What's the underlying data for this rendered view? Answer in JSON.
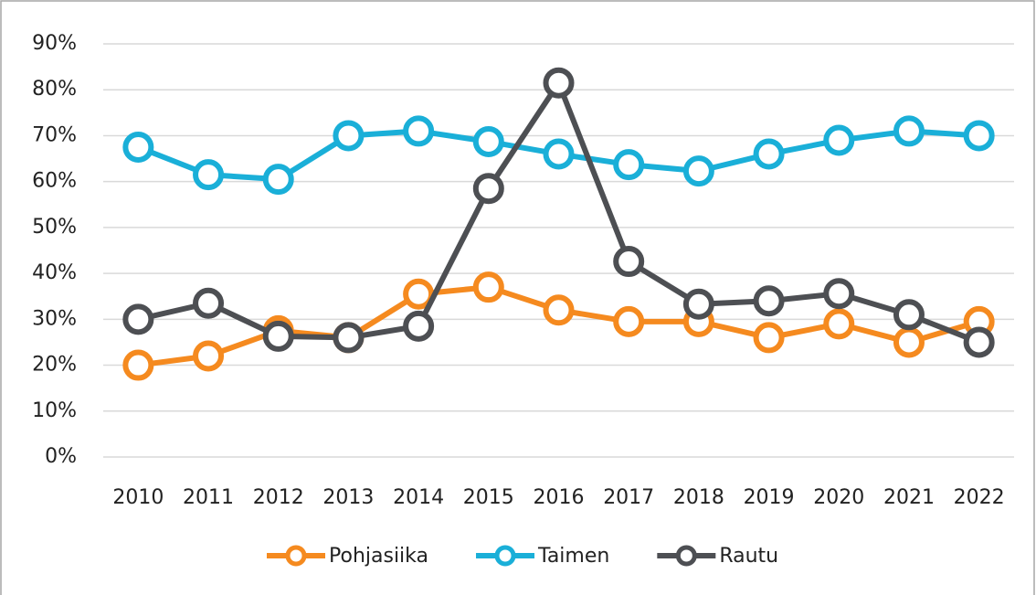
{
  "chart_data": {
    "type": "line",
    "categories": [
      "2010",
      "2011",
      "2012",
      "2013",
      "2014",
      "2015",
      "2016",
      "2017",
      "2018",
      "2019",
      "2020",
      "2021",
      "2022"
    ],
    "series": [
      {
        "name": "Pohjasiika",
        "color": "#f58a1f",
        "values": [
          20,
          22,
          27.5,
          26,
          35.5,
          37,
          32,
          29.5,
          29.5,
          26,
          29,
          25,
          29.5
        ]
      },
      {
        "name": "Taimen",
        "color": "#1aafd8",
        "values": [
          67.5,
          61.5,
          60.5,
          70,
          71,
          68.7,
          66,
          63.7,
          62.3,
          66,
          69,
          71,
          70
        ]
      },
      {
        "name": "Rautu",
        "color": "#4d4f53",
        "values": [
          30,
          33.5,
          26.3,
          26,
          28.5,
          58.5,
          81.5,
          42.6,
          33.3,
          34,
          35.6,
          31,
          25
        ]
      }
    ],
    "ylim": [
      0,
      90
    ],
    "yticks": [
      {
        "value": 0,
        "label": "0%"
      },
      {
        "value": 10,
        "label": "10%"
      },
      {
        "value": 20,
        "label": "20%"
      },
      {
        "value": 30,
        "label": "30%"
      },
      {
        "value": 40,
        "label": "40%"
      },
      {
        "value": 50,
        "label": "50%"
      },
      {
        "value": 60,
        "label": "60%"
      },
      {
        "value": 70,
        "label": "70%"
      },
      {
        "value": 80,
        "label": "80%"
      },
      {
        "value": 90,
        "label": "90%"
      }
    ],
    "grid": true,
    "legend": "bottom"
  }
}
